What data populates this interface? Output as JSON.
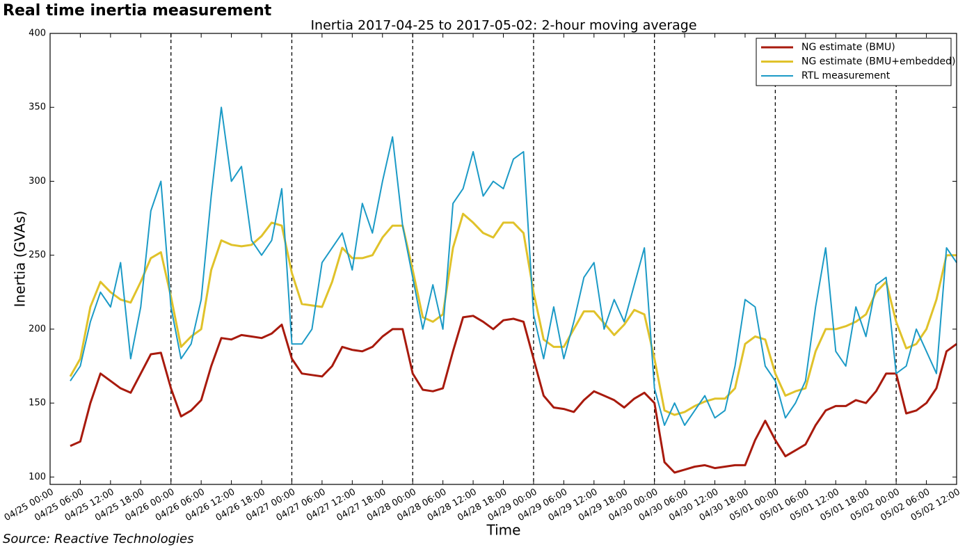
{
  "headline": "Real time inertia measurement",
  "source": "Source: Reactive Technologies",
  "chart_data": {
    "type": "line",
    "title": "Inertia 2017-04-25 to 2017-05-02: 2-hour moving average",
    "xlabel": "Time",
    "ylabel": "Inertia (GVAs)",
    "xlim": [
      "04/25 00:00",
      "05/02 12:00"
    ],
    "ylim": [
      95,
      400
    ],
    "yticks": [
      100,
      150,
      200,
      250,
      300,
      350,
      400
    ],
    "xticks": [
      "04/25 00:00",
      "04/25 06:00",
      "04/25 12:00",
      "04/25 18:00",
      "04/26 00:00",
      "04/26 06:00",
      "04/26 12:00",
      "04/26 18:00",
      "04/27 00:00",
      "04/27 06:00",
      "04/27 12:00",
      "04/27 18:00",
      "04/28 00:00",
      "04/28 06:00",
      "04/28 12:00",
      "04/28 18:00",
      "04/29 00:00",
      "04/29 06:00",
      "04/29 12:00",
      "04/29 18:00",
      "04/30 00:00",
      "04/30 06:00",
      "04/30 12:00",
      "04/30 18:00",
      "05/01 00:00",
      "05/01 06:00",
      "05/01 12:00",
      "05/01 18:00",
      "05/02 00:00",
      "05/02 06:00",
      "05/02 12:00"
    ],
    "vlines": [
      "04/26 00:00",
      "04/27 00:00",
      "04/28 00:00",
      "04/29 00:00",
      "04/30 00:00",
      "05/01 00:00",
      "05/02 00:00"
    ],
    "legend": "upper right",
    "x": [
      "04/25 04:00",
      "04/25 06:00",
      "04/25 08:00",
      "04/25 10:00",
      "04/25 12:00",
      "04/25 14:00",
      "04/25 16:00",
      "04/25 18:00",
      "04/25 20:00",
      "04/25 22:00",
      "04/26 00:00",
      "04/26 02:00",
      "04/26 04:00",
      "04/26 06:00",
      "04/26 08:00",
      "04/26 10:00",
      "04/26 12:00",
      "04/26 14:00",
      "04/26 16:00",
      "04/26 18:00",
      "04/26 20:00",
      "04/26 22:00",
      "04/27 00:00",
      "04/27 02:00",
      "04/27 04:00",
      "04/27 06:00",
      "04/27 08:00",
      "04/27 10:00",
      "04/27 12:00",
      "04/27 14:00",
      "04/27 16:00",
      "04/27 18:00",
      "04/27 20:00",
      "04/27 22:00",
      "04/28 00:00",
      "04/28 02:00",
      "04/28 04:00",
      "04/28 06:00",
      "04/28 08:00",
      "04/28 10:00",
      "04/28 12:00",
      "04/28 14:00",
      "04/28 16:00",
      "04/28 18:00",
      "04/28 20:00",
      "04/28 22:00",
      "04/29 00:00",
      "04/29 02:00",
      "04/29 04:00",
      "04/29 06:00",
      "04/29 08:00",
      "04/29 10:00",
      "04/29 12:00",
      "04/29 14:00",
      "04/29 16:00",
      "04/29 18:00",
      "04/29 20:00",
      "04/29 22:00",
      "04/30 00:00",
      "04/30 02:00",
      "04/30 04:00",
      "04/30 06:00",
      "04/30 08:00",
      "04/30 10:00",
      "04/30 12:00",
      "04/30 14:00",
      "04/30 16:00",
      "04/30 18:00",
      "04/30 20:00",
      "04/30 22:00",
      "05/01 00:00",
      "05/01 02:00",
      "05/01 04:00",
      "05/01 06:00",
      "05/01 08:00",
      "05/01 10:00",
      "05/01 12:00",
      "05/01 14:00",
      "05/01 16:00",
      "05/01 18:00",
      "05/01 20:00",
      "05/01 22:00",
      "05/02 00:00",
      "05/02 02:00",
      "05/02 04:00",
      "05/02 06:00",
      "05/02 08:00",
      "05/02 10:00",
      "05/02 12:00"
    ],
    "series": [
      {
        "name": "NG estimate (BMU)",
        "color": "#a81a0d",
        "width": 3,
        "values": [
          121,
          124,
          150,
          170,
          165,
          160,
          157,
          170,
          183,
          184,
          160,
          141,
          145,
          152,
          175,
          194,
          193,
          196,
          195,
          194,
          197,
          203,
          180,
          170,
          169,
          168,
          175,
          188,
          186,
          185,
          188,
          195,
          200,
          200,
          170,
          159,
          158,
          160,
          185,
          208,
          209,
          205,
          200,
          206,
          207,
          205,
          180,
          155,
          147,
          146,
          144,
          152,
          158,
          155,
          152,
          147,
          153,
          157,
          150,
          110,
          103,
          105,
          107,
          108,
          106,
          107,
          108,
          108,
          125,
          138,
          125,
          114,
          118,
          122,
          135,
          145,
          148,
          148,
          152,
          150,
          158,
          170,
          170,
          143,
          145,
          150,
          160,
          185,
          190
        ]
      },
      {
        "name": "NG estimate (BMU+embedded)",
        "color": "#e0c22a",
        "width": 3,
        "values": [
          168,
          180,
          215,
          232,
          225,
          220,
          218,
          232,
          248,
          252,
          222,
          188,
          195,
          200,
          240,
          260,
          257,
          256,
          257,
          263,
          272,
          270,
          238,
          217,
          216,
          215,
          232,
          255,
          248,
          248,
          250,
          262,
          270,
          270,
          240,
          208,
          205,
          210,
          255,
          278,
          272,
          265,
          262,
          272,
          272,
          265,
          225,
          193,
          188,
          188,
          200,
          212,
          212,
          204,
          196,
          203,
          213,
          210,
          180,
          145,
          142,
          144,
          148,
          151,
          153,
          153,
          160,
          190,
          195,
          193,
          170,
          155,
          158,
          160,
          185,
          200,
          200,
          202,
          205,
          210,
          225,
          232,
          205,
          187,
          190,
          200,
          220,
          250,
          250
        ]
      },
      {
        "name": "RTL measurement",
        "color": "#1b9ac6",
        "width": 2,
        "values": [
          165,
          175,
          205,
          225,
          215,
          245,
          180,
          215,
          280,
          300,
          215,
          180,
          190,
          220,
          290,
          350,
          300,
          310,
          260,
          250,
          260,
          295,
          190,
          190,
          200,
          245,
          255,
          265,
          240,
          285,
          265,
          300,
          330,
          270,
          235,
          200,
          230,
          200,
          285,
          295,
          320,
          290,
          300,
          295,
          315,
          320,
          210,
          180,
          215,
          180,
          205,
          235,
          245,
          200,
          220,
          205,
          230,
          255,
          160,
          135,
          150,
          135,
          145,
          155,
          140,
          145,
          175,
          220,
          215,
          175,
          165,
          140,
          150,
          165,
          215,
          255,
          185,
          175,
          215,
          195,
          230,
          235,
          170,
          175,
          200,
          185,
          170,
          255,
          245
        ]
      }
    ]
  }
}
